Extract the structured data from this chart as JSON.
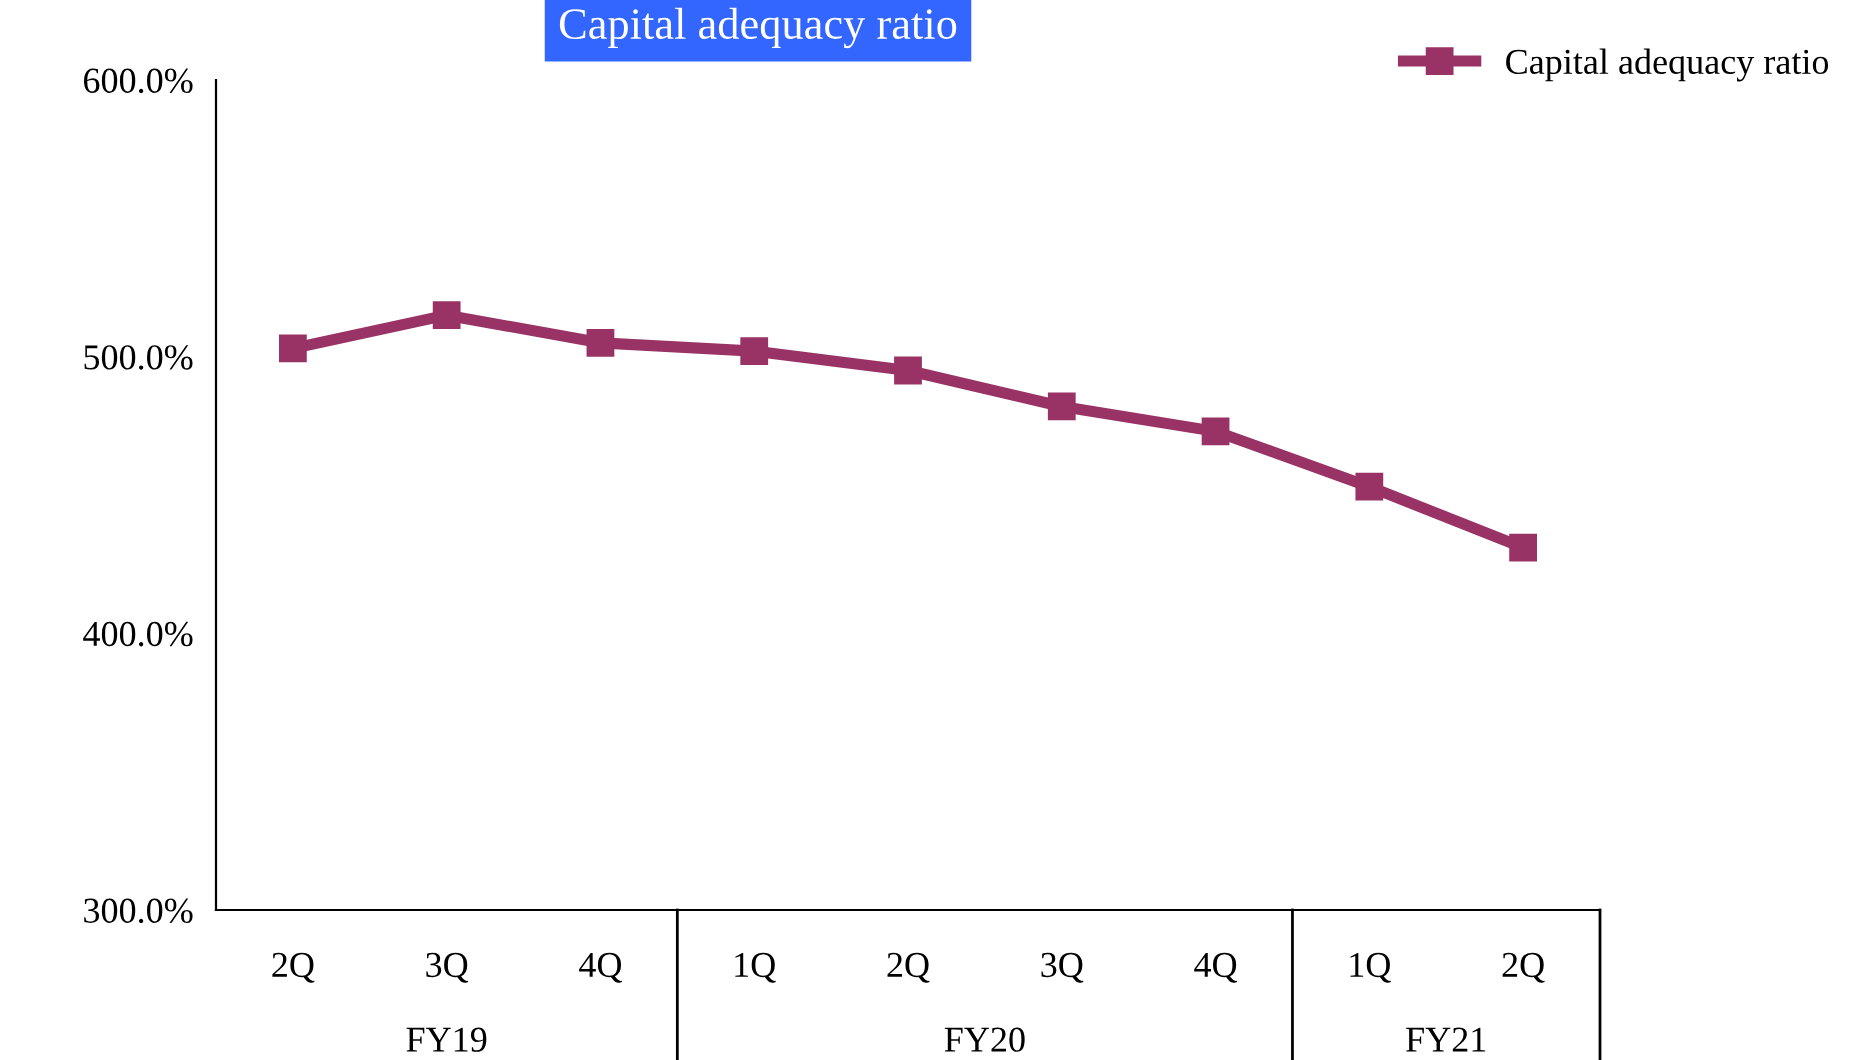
{
  "chart_data": {
    "type": "line",
    "title": "Capital adequacy ratio",
    "categories": [
      "2Q",
      "3Q",
      "4Q",
      "1Q",
      "2Q",
      "3Q",
      "4Q",
      "1Q",
      "2Q"
    ],
    "series": [
      {
        "name": "Capital adequacy ratio",
        "color": "#993366",
        "values": [
          503,
          515,
          505,
          502,
          495,
          482,
          473,
          453,
          431
        ]
      }
    ],
    "ylim": [
      300,
      600
    ],
    "yticks": [
      {
        "value": 300,
        "label": "300.0%"
      },
      {
        "value": 400,
        "label": "400.0%"
      },
      {
        "value": 500,
        "label": "500.0%"
      },
      {
        "value": 600,
        "label": "600.0%"
      }
    ],
    "annotations": [
      "FY19",
      "FY20",
      "FY21"
    ],
    "marker": "square",
    "line_style": "solid",
    "grid": false,
    "legend": "top right"
  }
}
